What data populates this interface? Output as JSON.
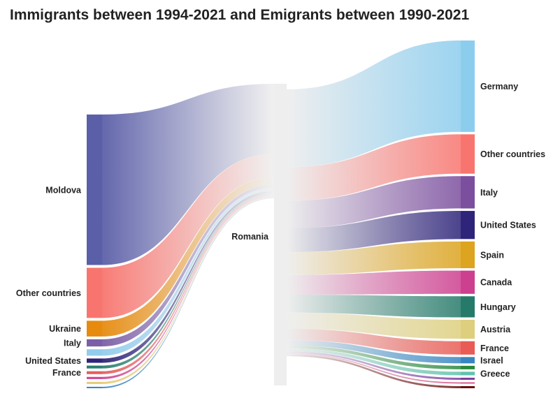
{
  "title": "Immigrants between 1994-2021 and Emigrants between 1990-2021",
  "colors": {
    "center_node": "#eeeeee",
    "label_text": "#222222",
    "background": "#ffffff"
  },
  "chart_data": {
    "type": "sankey",
    "center_node": "Romania",
    "sources": [
      {
        "name": "Moldova",
        "value": 210,
        "color": "#5b5fa8",
        "labeled": true
      },
      {
        "name": "Other countries",
        "value": 70,
        "color": "#f8756f",
        "labeled": true
      },
      {
        "name": "Ukraine",
        "value": 22,
        "color": "#e68b0e",
        "labeled": true
      },
      {
        "name": "Italy",
        "value": 10,
        "color": "#7b5ea6",
        "labeled": true
      },
      {
        "name": "",
        "value": 9,
        "color": "#93ccec",
        "labeled": false
      },
      {
        "name": "United States",
        "value": 6,
        "color": "#2e2479",
        "labeled": true
      },
      {
        "name": "",
        "value": 4,
        "color": "#2a7f6f",
        "labeled": false
      },
      {
        "name": "France",
        "value": 4,
        "color": "#e3605e",
        "labeled": true
      },
      {
        "name": "",
        "value": 3,
        "color": "#cf4596",
        "labeled": false
      },
      {
        "name": "",
        "value": 3,
        "color": "#e8cb78",
        "labeled": false
      },
      {
        "name": "",
        "value": 2,
        "color": "#3d87c4",
        "labeled": false
      }
    ],
    "targets": [
      {
        "name": "Germany",
        "value": 130,
        "color": "#8ccdee",
        "labeled": true
      },
      {
        "name": "Other countries",
        "value": 56,
        "color": "#f8756f",
        "labeled": true
      },
      {
        "name": "Italy",
        "value": 46,
        "color": "#7b4f9e",
        "labeled": true
      },
      {
        "name": "United States",
        "value": 40,
        "color": "#2e2479",
        "labeled": true
      },
      {
        "name": "Spain",
        "value": 38,
        "color": "#dca41f",
        "labeled": true
      },
      {
        "name": "Canada",
        "value": 33,
        "color": "#cd3f8f",
        "labeled": true
      },
      {
        "name": "Hungary",
        "value": 30,
        "color": "#267a6a",
        "labeled": true
      },
      {
        "name": "Austria",
        "value": 27,
        "color": "#decf7f",
        "labeled": true
      },
      {
        "name": "France",
        "value": 19,
        "color": "#e85c55",
        "labeled": true
      },
      {
        "name": "Israel",
        "value": 9,
        "color": "#3786c1",
        "labeled": true
      },
      {
        "name": "",
        "value": 5,
        "color": "#2a8a3c",
        "labeled": false
      },
      {
        "name": "Greece",
        "value": 5,
        "color": "#5fc3ac",
        "labeled": true
      },
      {
        "name": "",
        "value": 3,
        "color": "#7c3fa0",
        "labeled": false
      },
      {
        "name": "",
        "value": 2,
        "color": "#d65a8c",
        "labeled": false
      },
      {
        "name": "",
        "value": 3,
        "color": "#6b1010",
        "labeled": false
      }
    ]
  }
}
